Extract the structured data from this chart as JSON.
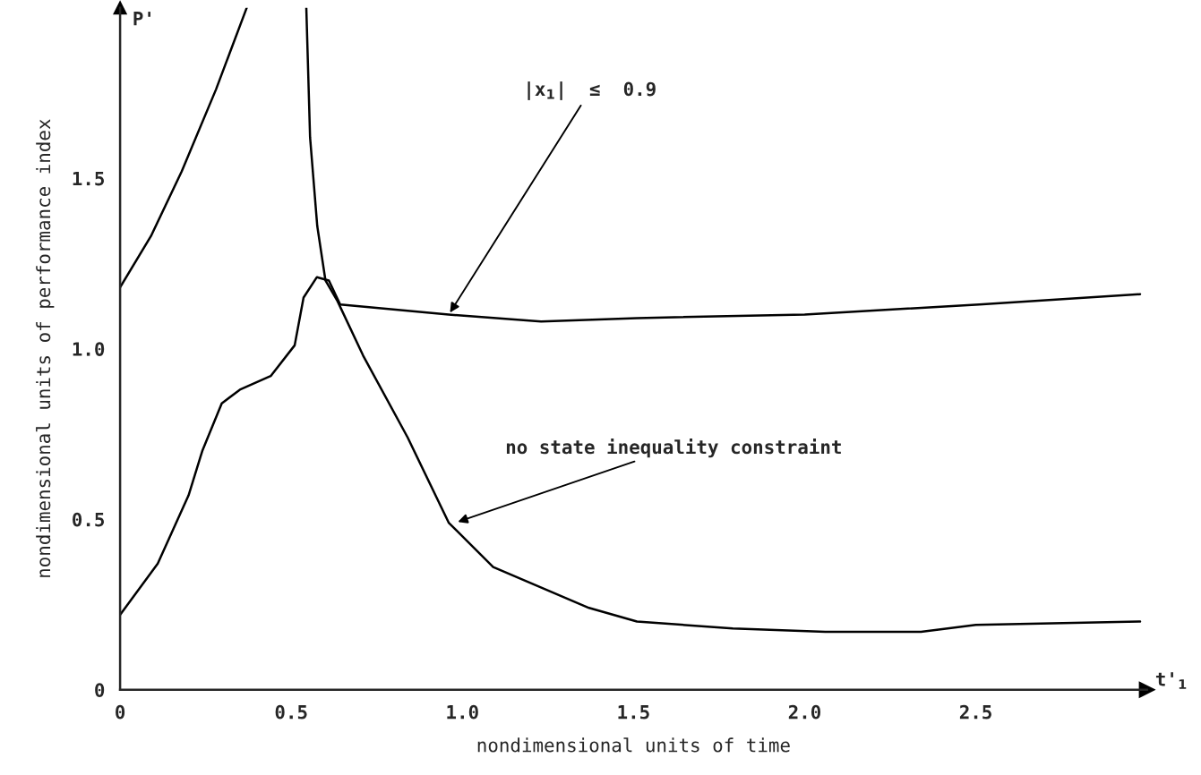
{
  "chart_data": {
    "type": "line",
    "xlabel": "nondimensional units of time",
    "ylabel": "nondimensional units of performance index",
    "xlim": [
      0,
      3.0
    ],
    "ylim": [
      0,
      2.0
    ],
    "xticks": [
      0,
      0.5,
      {
        "value": 1.0,
        "label": "1.0"
      },
      1.5,
      {
        "value": 2.0,
        "label": "2.0"
      },
      2.5
    ],
    "yticks": [
      0,
      0.5,
      {
        "value": 1.0,
        "label": "1.0"
      },
      1.5
    ],
    "grid": false,
    "legend": false,
    "marker": "none",
    "line_style": "solid",
    "series": [
      {
        "color": "#000000",
        "x": [
          0,
          0.09,
          0.18,
          0.28,
          0.37
        ],
        "values": [
          1.18,
          1.33,
          1.52,
          1.76,
          2.0
        ]
      },
      {
        "color": "#000000",
        "x": [
          0.544,
          0.555,
          0.576,
          0.6,
          0.635,
          0.71,
          0.84,
          0.96,
          1.09,
          1.37,
          1.51,
          1.79,
          2.06,
          2.34,
          2.5,
          2.98
        ],
        "values": [
          2.0,
          1.62,
          1.36,
          1.2,
          1.14,
          0.98,
          0.74,
          0.49,
          0.36,
          0.24,
          0.2,
          0.18,
          0.17,
          0.17,
          0.19,
          0.2
        ]
      },
      {
        "color": "#000000",
        "x": [
          0,
          0.11,
          0.2,
          0.24,
          0.297,
          0.35,
          0.44,
          0.51,
          0.536,
          0.575,
          0.61,
          0.643,
          0.96,
          1.23,
          1.51,
          2.0,
          2.51,
          2.98
        ],
        "values": [
          0.22,
          0.37,
          0.57,
          0.7,
          0.84,
          0.88,
          0.92,
          1.01,
          1.15,
          1.21,
          1.2,
          1.13,
          1.1,
          1.08,
          1.09,
          1.1,
          1.13,
          1.16
        ]
      }
    ],
    "annotations": [
      "P'",
      "t'$_{1}$",
      {
        "text": "|x$_{1}$|  ≤  0.9",
        "x": 0.96,
        "y": 1.1
      },
      {
        "text": "no state inequality constraint",
        "x": 0.98,
        "y": 0.49
      }
    ]
  }
}
